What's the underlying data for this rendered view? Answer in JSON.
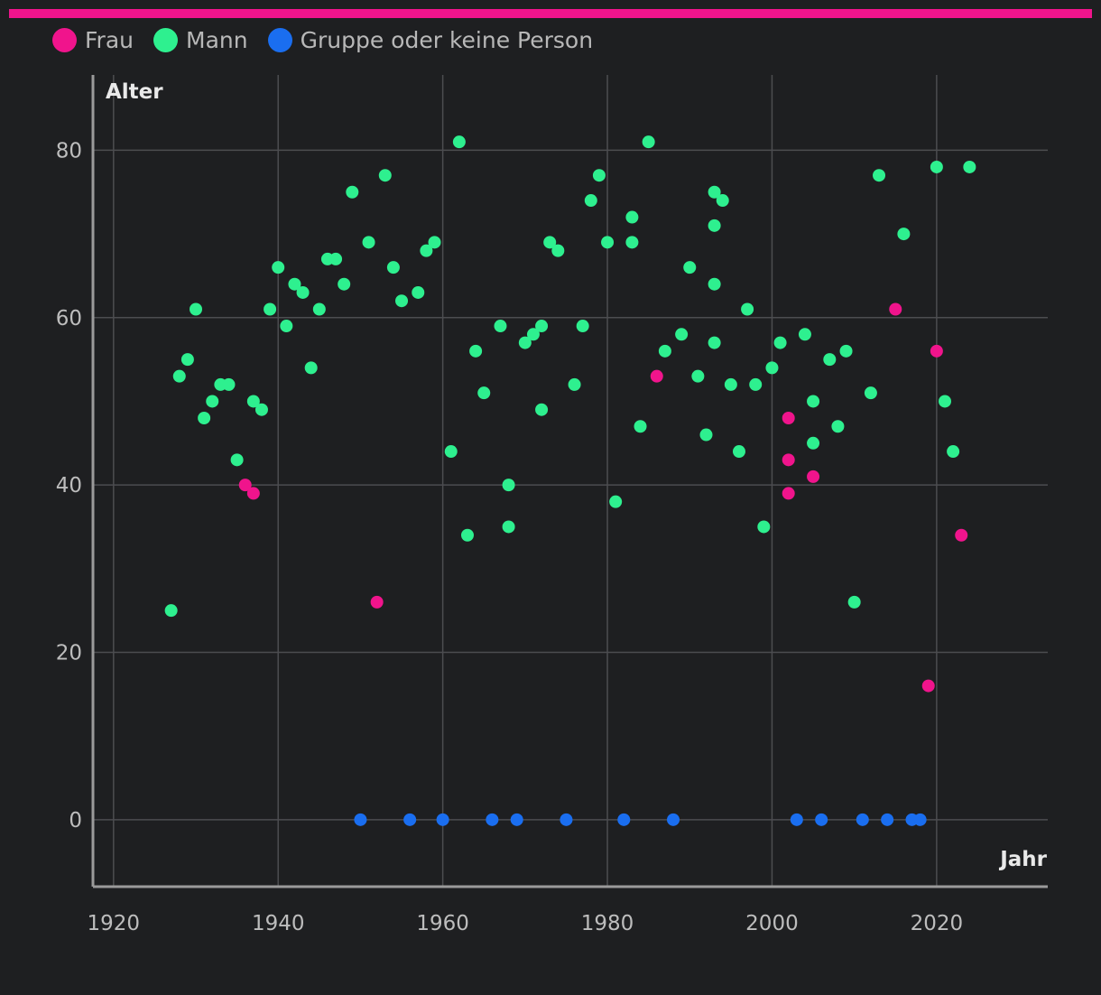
{
  "colors": {
    "background": "#1e1f21",
    "accent_bar": "#f0148c",
    "frau": "#f0148c",
    "mann": "#2ef08f",
    "gruppe": "#1a6ef0",
    "grid": "#4c4d50",
    "axis": "#9a9a9a"
  },
  "chart_data": {
    "type": "scatter",
    "xlabel": "Jahr",
    "ylabel": "Alter",
    "xlim": [
      1917.5,
      2033.5
    ],
    "ylim": [
      -8,
      89
    ],
    "xticks": [
      1920,
      1940,
      1960,
      1980,
      2000,
      2020
    ],
    "yticks": [
      0,
      20,
      40,
      60,
      80
    ],
    "grid": true,
    "legend_position": "top-left",
    "series": [
      {
        "name": "Frau",
        "color": "#f0148c",
        "points": [
          [
            1936,
            40
          ],
          [
            1937,
            39
          ],
          [
            1952,
            26
          ],
          [
            1986,
            53
          ],
          [
            2002,
            48
          ],
          [
            2002,
            43
          ],
          [
            2002,
            39
          ],
          [
            2005,
            41
          ],
          [
            2015,
            61
          ],
          [
            2019,
            16
          ],
          [
            2020,
            56
          ],
          [
            2023,
            34
          ]
        ]
      },
      {
        "name": "Mann",
        "color": "#2ef08f",
        "points": [
          [
            1927,
            25
          ],
          [
            1928,
            53
          ],
          [
            1929,
            55
          ],
          [
            1930,
            61
          ],
          [
            1931,
            48
          ],
          [
            1932,
            50
          ],
          [
            1933,
            52
          ],
          [
            1934,
            52
          ],
          [
            1935,
            43
          ],
          [
            1937,
            50
          ],
          [
            1938,
            49
          ],
          [
            1939,
            61
          ],
          [
            1940,
            66
          ],
          [
            1941,
            59
          ],
          [
            1942,
            64
          ],
          [
            1943,
            63
          ],
          [
            1944,
            54
          ],
          [
            1945,
            61
          ],
          [
            1946,
            67
          ],
          [
            1947,
            67
          ],
          [
            1948,
            64
          ],
          [
            1949,
            75
          ],
          [
            1951,
            69
          ],
          [
            1953,
            77
          ],
          [
            1954,
            66
          ],
          [
            1955,
            62
          ],
          [
            1957,
            63
          ],
          [
            1958,
            68
          ],
          [
            1959,
            69
          ],
          [
            1961,
            44
          ],
          [
            1962,
            81
          ],
          [
            1963,
            34
          ],
          [
            1964,
            56
          ],
          [
            1965,
            51
          ],
          [
            1967,
            59
          ],
          [
            1968,
            40
          ],
          [
            1968,
            35
          ],
          [
            1970,
            57
          ],
          [
            1971,
            58
          ],
          [
            1972,
            59
          ],
          [
            1972,
            49
          ],
          [
            1973,
            69
          ],
          [
            1974,
            68
          ],
          [
            1976,
            52
          ],
          [
            1977,
            59
          ],
          [
            1978,
            74
          ],
          [
            1979,
            77
          ],
          [
            1980,
            69
          ],
          [
            1981,
            38
          ],
          [
            1983,
            72
          ],
          [
            1983,
            69
          ],
          [
            1984,
            47
          ],
          [
            1985,
            81
          ],
          [
            1987,
            56
          ],
          [
            1989,
            58
          ],
          [
            1990,
            66
          ],
          [
            1991,
            53
          ],
          [
            1992,
            46
          ],
          [
            1993,
            75
          ],
          [
            1993,
            71
          ],
          [
            1993,
            64
          ],
          [
            1993,
            57
          ],
          [
            1994,
            74
          ],
          [
            1995,
            52
          ],
          [
            1996,
            44
          ],
          [
            1997,
            61
          ],
          [
            1998,
            52
          ],
          [
            1999,
            35
          ],
          [
            2000,
            54
          ],
          [
            2001,
            57
          ],
          [
            2004,
            58
          ],
          [
            2005,
            50
          ],
          [
            2005,
            45
          ],
          [
            2007,
            55
          ],
          [
            2008,
            47
          ],
          [
            2009,
            56
          ],
          [
            2010,
            26
          ],
          [
            2012,
            51
          ],
          [
            2013,
            77
          ],
          [
            2016,
            70
          ],
          [
            2020,
            78
          ],
          [
            2021,
            50
          ],
          [
            2022,
            44
          ],
          [
            2024,
            78
          ]
        ]
      },
      {
        "name": "Gruppe oder keine Person",
        "color": "#1a6ef0",
        "points": [
          [
            1950,
            0
          ],
          [
            1956,
            0
          ],
          [
            1960,
            0
          ],
          [
            1966,
            0
          ],
          [
            1969,
            0
          ],
          [
            1975,
            0
          ],
          [
            1982,
            0
          ],
          [
            1988,
            0
          ],
          [
            2003,
            0
          ],
          [
            2006,
            0
          ],
          [
            2011,
            0
          ],
          [
            2014,
            0
          ],
          [
            2017,
            0
          ],
          [
            2018,
            0
          ]
        ]
      }
    ]
  }
}
